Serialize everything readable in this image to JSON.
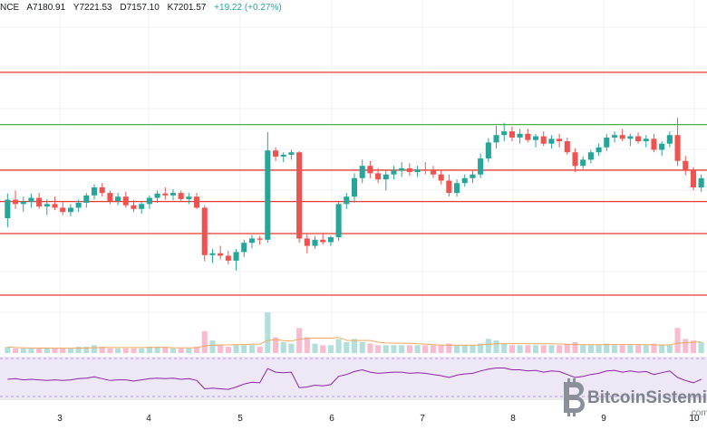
{
  "header": {
    "symbol_fragment": "NCE",
    "open": "A7180.91",
    "high": "Y7221.53",
    "low": "D7157.10",
    "close": "K7201.57",
    "change": "+19.22 (+0.27%)"
  },
  "watermark": {
    "brand": "BitcoinSistemi",
    "suffix": ".com"
  },
  "colors": {
    "up": "#26a69a",
    "down": "#ef5350",
    "resistance": "#e53935",
    "support_green": "#4caf50",
    "rsi_band": "#ede7f6",
    "rsi_line": "#8e24aa",
    "grid": "#eef0f3"
  },
  "chart_data": {
    "type": "candlestick",
    "x_tick_labels": [
      "3",
      "4",
      "5",
      "6",
      "7",
      "8",
      "9",
      "10"
    ],
    "horizontal_levels": [
      {
        "color": "red",
        "value": 7392
      },
      {
        "color": "green",
        "value": 7307
      },
      {
        "color": "red",
        "value": 7233
      },
      {
        "color": "red",
        "value": 7182
      },
      {
        "color": "red",
        "value": 7130
      },
      {
        "color": "red",
        "value": 7030
      }
    ],
    "y_range": [
      6980,
      7480
    ],
    "candles": [
      [
        7155,
        7195,
        7140,
        7185
      ],
      [
        7185,
        7200,
        7170,
        7178
      ],
      [
        7178,
        7190,
        7165,
        7182
      ],
      [
        7182,
        7195,
        7172,
        7188
      ],
      [
        7188,
        7196,
        7170,
        7174
      ],
      [
        7174,
        7186,
        7160,
        7178
      ],
      [
        7178,
        7190,
        7168,
        7172
      ],
      [
        7172,
        7182,
        7160,
        7165
      ],
      [
        7165,
        7178,
        7158,
        7172
      ],
      [
        7172,
        7185,
        7165,
        7180
      ],
      [
        7180,
        7196,
        7172,
        7192
      ],
      [
        7192,
        7210,
        7185,
        7205
      ],
      [
        7205,
        7212,
        7190,
        7196
      ],
      [
        7196,
        7200,
        7178,
        7183
      ],
      [
        7183,
        7196,
        7176,
        7190
      ],
      [
        7190,
        7198,
        7172,
        7176
      ],
      [
        7176,
        7184,
        7165,
        7170
      ],
      [
        7170,
        7182,
        7162,
        7178
      ],
      [
        7178,
        7192,
        7170,
        7188
      ],
      [
        7188,
        7200,
        7180,
        7195
      ],
      [
        7195,
        7205,
        7185,
        7192
      ],
      [
        7192,
        7202,
        7184,
        7196
      ],
      [
        7196,
        7200,
        7182,
        7186
      ],
      [
        7186,
        7196,
        7178,
        7190
      ],
      [
        7190,
        7196,
        7170,
        7172
      ],
      [
        7172,
        7176,
        7085,
        7095
      ],
      [
        7095,
        7105,
        7082,
        7098
      ],
      [
        7098,
        7110,
        7088,
        7094
      ],
      [
        7094,
        7102,
        7080,
        7086
      ],
      [
        7086,
        7105,
        7070,
        7100
      ],
      [
        7100,
        7120,
        7092,
        7115
      ],
      [
        7115,
        7128,
        7106,
        7122
      ],
      [
        7122,
        7126,
        7112,
        7120
      ],
      [
        7120,
        7295,
        7115,
        7265
      ],
      [
        7265,
        7270,
        7248,
        7255
      ],
      [
        7255,
        7262,
        7246,
        7258
      ],
      [
        7258,
        7266,
        7250,
        7262
      ],
      [
        7262,
        7264,
        7115,
        7122
      ],
      [
        7122,
        7130,
        7098,
        7110
      ],
      [
        7110,
        7126,
        7105,
        7120
      ],
      [
        7120,
        7130,
        7112,
        7116
      ],
      [
        7116,
        7126,
        7110,
        7124
      ],
      [
        7124,
        7182,
        7118,
        7178
      ],
      [
        7178,
        7196,
        7170,
        7190
      ],
      [
        7190,
        7228,
        7180,
        7220
      ],
      [
        7220,
        7250,
        7212,
        7240
      ],
      [
        7240,
        7248,
        7220,
        7228
      ],
      [
        7228,
        7236,
        7212,
        7218
      ],
      [
        7218,
        7232,
        7200,
        7226
      ],
      [
        7226,
        7240,
        7218,
        7232
      ],
      [
        7232,
        7246,
        7222,
        7236
      ],
      [
        7236,
        7244,
        7224,
        7230
      ],
      [
        7230,
        7240,
        7222,
        7234
      ],
      [
        7234,
        7246,
        7226,
        7232
      ],
      [
        7232,
        7240,
        7220,
        7226
      ],
      [
        7226,
        7234,
        7210,
        7216
      ],
      [
        7216,
        7226,
        7190,
        7196
      ],
      [
        7196,
        7218,
        7190,
        7212
      ],
      [
        7212,
        7226,
        7206,
        7220
      ],
      [
        7220,
        7232,
        7212,
        7226
      ],
      [
        7226,
        7260,
        7220,
        7252
      ],
      [
        7252,
        7285,
        7246,
        7278
      ],
      [
        7278,
        7305,
        7268,
        7290
      ],
      [
        7290,
        7310,
        7280,
        7296
      ],
      [
        7296,
        7304,
        7280,
        7286
      ],
      [
        7286,
        7300,
        7276,
        7292
      ],
      [
        7292,
        7300,
        7278,
        7282
      ],
      [
        7282,
        7292,
        7270,
        7288
      ],
      [
        7288,
        7296,
        7272,
        7276
      ],
      [
        7276,
        7290,
        7268,
        7284
      ],
      [
        7284,
        7292,
        7270,
        7280
      ],
      [
        7280,
        7286,
        7258,
        7262
      ],
      [
        7262,
        7268,
        7230,
        7240
      ],
      [
        7240,
        7255,
        7235,
        7250
      ],
      [
        7250,
        7266,
        7244,
        7262
      ],
      [
        7262,
        7276,
        7256,
        7270
      ],
      [
        7270,
        7292,
        7264,
        7286
      ],
      [
        7286,
        7296,
        7278,
        7290
      ],
      [
        7290,
        7300,
        7280,
        7284
      ],
      [
        7284,
        7292,
        7272,
        7288
      ],
      [
        7288,
        7294,
        7276,
        7280
      ],
      [
        7280,
        7290,
        7270,
        7284
      ],
      [
        7284,
        7292,
        7262,
        7266
      ],
      [
        7266,
        7280,
        7256,
        7276
      ],
      [
        7276,
        7296,
        7270,
        7290
      ],
      [
        7290,
        7318,
        7240,
        7248
      ],
      [
        7248,
        7256,
        7225,
        7232
      ],
      [
        7232,
        7238,
        7200,
        7205
      ],
      [
        7205,
        7226,
        7198,
        7220
      ]
    ],
    "volume": [
      4,
      3,
      3,
      3,
      3,
      3,
      3,
      3,
      3,
      4,
      4,
      5,
      4,
      3,
      3,
      3,
      3,
      3,
      4,
      4,
      4,
      3,
      3,
      3,
      4,
      14,
      8,
      5,
      4,
      5,
      5,
      5,
      4,
      26,
      10,
      7,
      6,
      16,
      10,
      6,
      5,
      5,
      9,
      7,
      9,
      7,
      6,
      5,
      5,
      5,
      5,
      5,
      5,
      5,
      5,
      5,
      6,
      5,
      5,
      5,
      6,
      9,
      8,
      6,
      5,
      5,
      5,
      5,
      5,
      5,
      5,
      6,
      7,
      5,
      5,
      5,
      6,
      5,
      5,
      5,
      5,
      5,
      6,
      5,
      5,
      16,
      9,
      8,
      7
    ],
    "rsi": [
      52,
      53,
      51,
      52,
      51,
      50,
      51,
      50,
      51,
      53,
      54,
      56,
      53,
      50,
      51,
      51,
      49,
      51,
      53,
      54,
      53,
      54,
      52,
      53,
      50,
      36,
      37,
      36,
      35,
      39,
      44,
      47,
      46,
      70,
      64,
      63,
      64,
      38,
      39,
      42,
      41,
      43,
      57,
      60,
      65,
      68,
      64,
      62,
      63,
      64,
      64,
      62,
      63,
      62,
      60,
      58,
      55,
      59,
      61,
      62,
      66,
      69,
      71,
      71,
      68,
      68,
      66,
      67,
      64,
      66,
      65,
      60,
      55,
      57,
      60,
      62,
      66,
      67,
      64,
      66,
      64,
      65,
      60,
      63,
      66,
      55,
      50,
      46,
      52
    ]
  }
}
